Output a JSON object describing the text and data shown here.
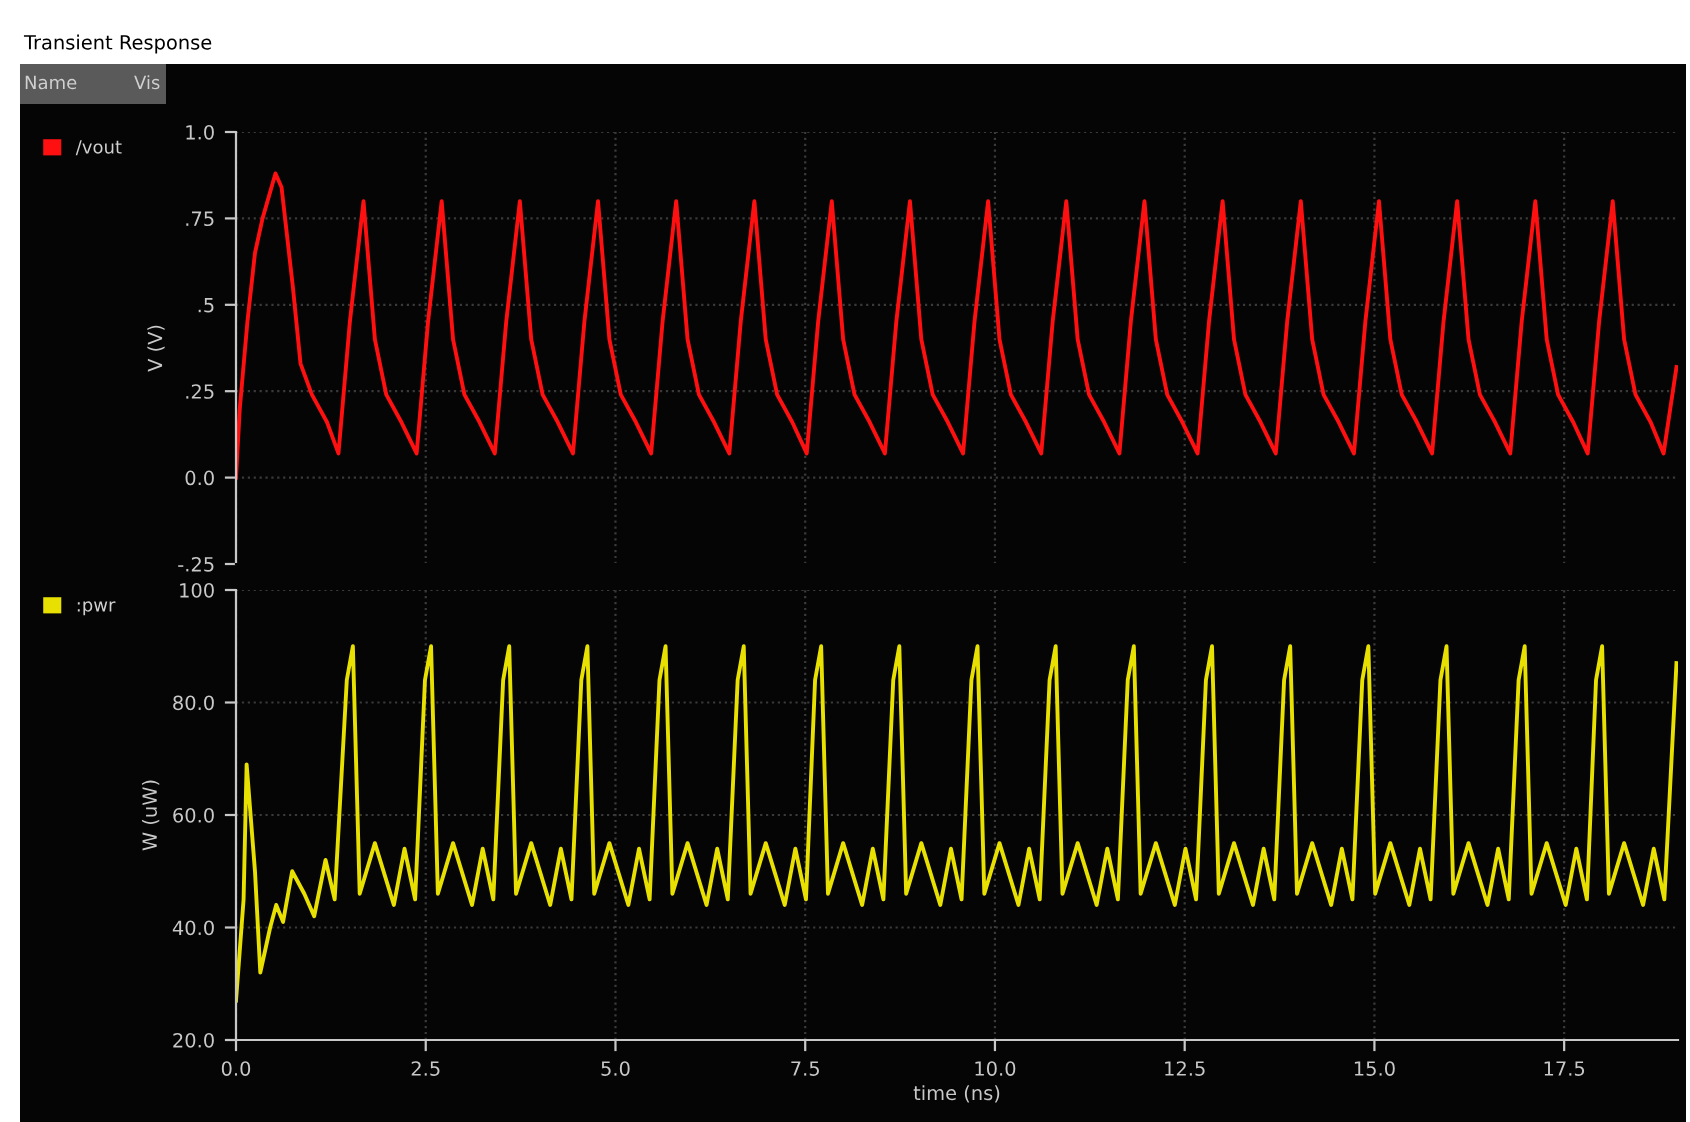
{
  "chart_data": [
    {
      "type": "line",
      "title": "Transient Response",
      "ylabel": "V (V)",
      "annotations": [
        "Name",
        "Vis"
      ],
      "legend": "left",
      "grid": true,
      "tick_labels": "y",
      "line_style": "solid",
      "marker": "none",
      "xlim": [
        0,
        19
      ],
      "xticks": [
        {
          "value": 0,
          "label": null
        },
        {
          "value": 2.5,
          "label": null
        },
        {
          "value": 5,
          "label": null
        },
        {
          "value": 7.5,
          "label": null
        },
        {
          "value": 10,
          "label": null
        },
        {
          "value": 12.5,
          "label": null
        },
        {
          "value": 15,
          "label": null
        },
        {
          "value": 17.5,
          "label": null
        }
      ],
      "ylim": [
        -0.25,
        1.0
      ],
      "yticks": [
        {
          "value": -0.25,
          "label": "-.25"
        },
        {
          "value": 0,
          "label": "0.0"
        },
        {
          "value": 0.25,
          "label": ".25"
        },
        {
          "value": 0.5,
          "label": ".5"
        },
        {
          "value": 0.75,
          "label": ".75"
        },
        {
          "value": 1.0,
          "label": "1.0"
        }
      ],
      "series": [
        {
          "name": "/vout",
          "color": "#ff1010",
          "x": [
            0,
            0.05,
            0.15,
            0.25,
            0.35,
            0.52,
            0.6,
            0.75,
            0.85,
            1.0,
            1.2,
            1.35,
            1.5,
            1.68,
            1.83,
            1.98,
            2.18,
            2.38,
            2.53,
            2.71,
            2.86,
            3.01,
            3.21,
            3.41,
            3.56,
            3.74,
            3.89,
            4.04,
            4.24,
            4.44,
            4.59,
            4.77,
            4.92,
            5.07,
            5.27,
            5.47,
            5.62,
            5.8,
            5.95,
            6.1,
            6.3,
            6.5,
            6.65,
            6.83,
            6.98,
            7.13,
            7.33,
            7.52,
            7.67,
            7.85,
            8.0,
            8.15,
            8.35,
            8.55,
            8.7,
            8.88,
            9.03,
            9.18,
            9.38,
            9.58,
            9.73,
            9.91,
            10.06,
            10.21,
            10.41,
            10.61,
            10.76,
            10.94,
            11.09,
            11.24,
            11.44,
            11.64,
            11.79,
            11.97,
            12.12,
            12.27,
            12.47,
            12.67,
            12.82,
            13.0,
            13.15,
            13.3,
            13.5,
            13.7,
            13.85,
            14.03,
            14.18,
            14.33,
            14.53,
            14.73,
            14.88,
            15.06,
            15.21,
            15.36,
            15.56,
            15.76,
            15.91,
            16.09,
            16.24,
            16.39,
            16.59,
            16.79,
            16.94,
            17.12,
            17.27,
            17.42,
            17.62,
            17.81,
            17.96,
            18.14,
            18.29,
            18.44,
            18.64,
            18.81,
            18.98
          ],
          "values": [
            0.0,
            0.2,
            0.45,
            0.65,
            0.75,
            0.88,
            0.84,
            0.55,
            0.33,
            0.24,
            0.16,
            0.07,
            0.45,
            0.8,
            0.4,
            0.24,
            0.16,
            0.07,
            0.45,
            0.8,
            0.4,
            0.24,
            0.16,
            0.07,
            0.45,
            0.8,
            0.4,
            0.24,
            0.16,
            0.07,
            0.45,
            0.8,
            0.4,
            0.24,
            0.16,
            0.07,
            0.45,
            0.8,
            0.4,
            0.24,
            0.16,
            0.07,
            0.45,
            0.8,
            0.4,
            0.24,
            0.16,
            0.07,
            0.45,
            0.8,
            0.4,
            0.24,
            0.16,
            0.07,
            0.45,
            0.8,
            0.4,
            0.24,
            0.16,
            0.07,
            0.45,
            0.8,
            0.4,
            0.24,
            0.16,
            0.07,
            0.45,
            0.8,
            0.4,
            0.24,
            0.16,
            0.07,
            0.45,
            0.8,
            0.4,
            0.24,
            0.16,
            0.07,
            0.45,
            0.8,
            0.4,
            0.24,
            0.16,
            0.07,
            0.45,
            0.8,
            0.4,
            0.24,
            0.16,
            0.07,
            0.45,
            0.8,
            0.4,
            0.24,
            0.16,
            0.07,
            0.45,
            0.8,
            0.4,
            0.24,
            0.16,
            0.07,
            0.45,
            0.8,
            0.4,
            0.24,
            0.16,
            0.07,
            0.45,
            0.8,
            0.4,
            0.24,
            0.16,
            0.07,
            0.32
          ]
        }
      ]
    },
    {
      "type": "line",
      "ylabel": "W (uW)",
      "xlabel": "time (ns)",
      "legend": "left",
      "grid": true,
      "line_style": "solid",
      "marker": "none",
      "xlim": [
        0,
        19
      ],
      "xticks": [
        {
          "value": 0,
          "label": "0.0"
        },
        2.5,
        {
          "value": 5,
          "label": "5.0"
        },
        7.5,
        {
          "value": 10,
          "label": "10.0"
        },
        12.5,
        {
          "value": 15,
          "label": "15.0"
        },
        17.5
      ],
      "ylim": [
        20,
        100
      ],
      "yticks": [
        {
          "value": 20,
          "label": "20.0"
        },
        {
          "value": 40,
          "label": "40.0"
        },
        {
          "value": 60,
          "label": "60.0"
        },
        {
          "value": 80,
          "label": "80.0"
        },
        100
      ],
      "series": [
        {
          "name": ":pwr",
          "color": "#e8e000",
          "x": [
            0,
            0.1,
            0.14,
            0.25,
            0.32,
            0.45,
            0.53,
            0.62,
            0.74,
            0.9,
            1.03,
            1.18,
            1.3,
            1.46,
            1.54,
            1.63,
            1.83,
            2.08,
            2.22,
            2.36,
            2.49,
            2.57,
            2.66,
            2.86,
            3.11,
            3.25,
            3.39,
            3.52,
            3.6,
            3.69,
            3.89,
            4.14,
            4.28,
            4.42,
            4.55,
            4.63,
            4.72,
            4.92,
            5.17,
            5.31,
            5.45,
            5.58,
            5.66,
            5.75,
            5.95,
            6.2,
            6.34,
            6.48,
            6.61,
            6.69,
            6.78,
            6.98,
            7.23,
            7.37,
            7.51,
            7.63,
            7.71,
            7.8,
            8.0,
            8.25,
            8.39,
            8.53,
            8.66,
            8.74,
            8.83,
            9.03,
            9.28,
            9.42,
            9.56,
            9.69,
            9.77,
            9.86,
            10.06,
            10.31,
            10.45,
            10.59,
            10.72,
            10.8,
            10.89,
            11.09,
            11.34,
            11.48,
            11.62,
            11.75,
            11.83,
            11.92,
            12.12,
            12.37,
            12.51,
            12.65,
            12.78,
            12.86,
            12.95,
            13.15,
            13.4,
            13.54,
            13.68,
            13.81,
            13.89,
            13.98,
            14.18,
            14.43,
            14.57,
            14.71,
            14.84,
            14.92,
            15.01,
            15.21,
            15.46,
            15.6,
            15.74,
            15.87,
            15.95,
            16.04,
            16.24,
            16.49,
            16.63,
            16.77,
            16.9,
            16.98,
            17.07,
            17.27,
            17.52,
            17.66,
            17.8,
            17.92,
            18.0,
            18.09,
            18.29,
            18.54,
            18.68,
            18.82,
            18.98
          ],
          "values": [
            27,
            45,
            69,
            50,
            32,
            40,
            44,
            41,
            50,
            46,
            42,
            52,
            45,
            84,
            90,
            46,
            55,
            44,
            54,
            45,
            84,
            90,
            46,
            55,
            44,
            54,
            45,
            84,
            90,
            46,
            55,
            44,
            54,
            45,
            84,
            90,
            46,
            55,
            44,
            54,
            45,
            84,
            90,
            46,
            55,
            44,
            54,
            45,
            84,
            90,
            46,
            55,
            44,
            54,
            45,
            84,
            90,
            46,
            55,
            44,
            54,
            45,
            84,
            90,
            46,
            55,
            44,
            54,
            45,
            84,
            90,
            46,
            55,
            44,
            54,
            45,
            84,
            90,
            46,
            55,
            44,
            54,
            45,
            84,
            90,
            46,
            55,
            44,
            54,
            45,
            84,
            90,
            46,
            55,
            44,
            54,
            45,
            84,
            90,
            46,
            55,
            44,
            54,
            45,
            84,
            90,
            46,
            55,
            44,
            54,
            45,
            84,
            90,
            46,
            55,
            44,
            54,
            45,
            84,
            90,
            46,
            55,
            44,
            54,
            45,
            84,
            90,
            46,
            55,
            44,
            54,
            45,
            87
          ]
        }
      ]
    }
  ]
}
